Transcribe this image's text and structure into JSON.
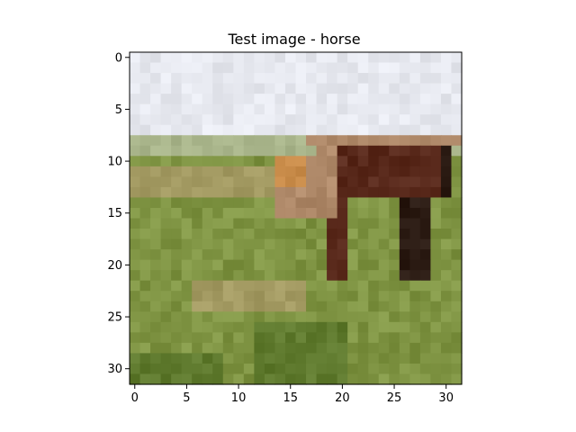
{
  "chart_data": {
    "type": "heatmap",
    "title": "Test image - horse",
    "xlabel": "",
    "ylabel": "",
    "image_size": [
      32,
      32
    ],
    "xlim": [
      -0.5,
      31.5
    ],
    "ylim": [
      31.5,
      -0.5
    ],
    "xticks": [
      0,
      5,
      10,
      15,
      20,
      25,
      30
    ],
    "yticks": [
      0,
      5,
      10,
      15,
      20,
      25,
      30
    ],
    "x_tick_labels": [
      "0",
      "5",
      "10",
      "15",
      "20",
      "25",
      "30"
    ],
    "y_tick_labels": [
      "0",
      "5",
      "10",
      "15",
      "20",
      "25",
      "30"
    ],
    "grid": false,
    "pixel_regions": {
      "sky": "#e6e8ef",
      "horizon": "#a8b48a",
      "grass": "#7f9443",
      "grass_dark": "#5f7a2e",
      "grass_light": "#a39a62",
      "horse_body": "#5a2a1c",
      "horse_light": "#b08a6a",
      "horse_shadow": "#2a1a12",
      "horse_tan": "#c98c4a"
    }
  }
}
